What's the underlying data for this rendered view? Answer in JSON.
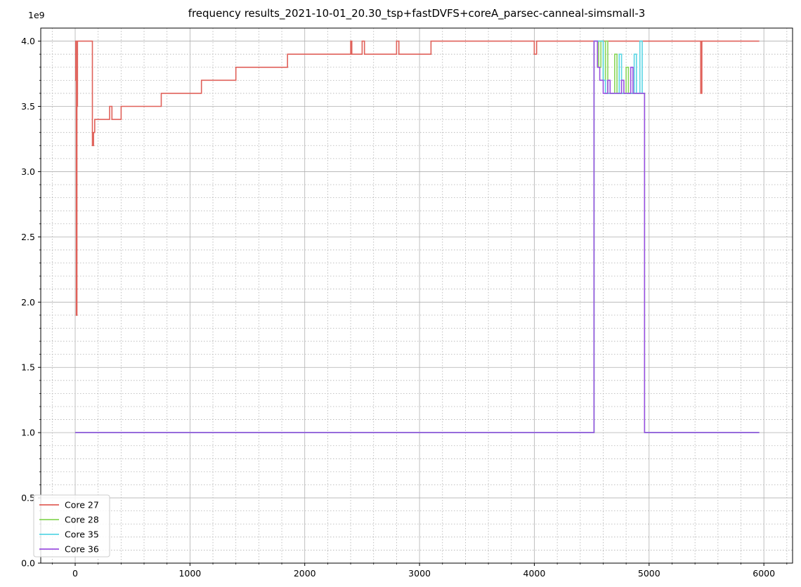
{
  "chart_data": {
    "type": "line",
    "title": "frequency results_2021-10-01_20.30_tsp+fastDVFS+coreA_parsec-canneal-simsmall-3",
    "xlabel": "",
    "ylabel": "",
    "y_offset_label": "1e9",
    "xlim": [
      -300,
      6250
    ],
    "ylim": [
      0,
      4.1
    ],
    "xticks": [
      0,
      1000,
      2000,
      3000,
      4000,
      5000,
      6000
    ],
    "xtick_labels": [
      "0",
      "1000",
      "2000",
      "3000",
      "4000",
      "5000",
      "6000"
    ],
    "yticks": [
      0.0,
      0.5,
      1.0,
      1.5,
      2.0,
      2.5,
      3.0,
      3.5,
      4.0
    ],
    "ytick_labels": [
      "0.0",
      "0.5",
      "1.0",
      "1.5",
      "2.0",
      "2.5",
      "3.0",
      "3.5",
      "4.0"
    ],
    "grid": true,
    "minor_grid": true,
    "legend_position": "bottom-left",
    "series": [
      {
        "name": "Core 27",
        "color": "#e0615a",
        "x": [
          0,
          5,
          5,
          10,
          10,
          15,
          15,
          20,
          20,
          150,
          150,
          160,
          160,
          170,
          170,
          250,
          250,
          300,
          300,
          320,
          320,
          340,
          340,
          400,
          400,
          550,
          550,
          600,
          600,
          750,
          750,
          1000,
          1000,
          1100,
          1100,
          1200,
          1200,
          1400,
          1400,
          1800,
          1800,
          1850,
          1850,
          2100,
          2100,
          2200,
          2200,
          2400,
          2400,
          2410,
          2410,
          2500,
          2500,
          2520,
          2520,
          2800,
          2800,
          2820,
          2820,
          3100,
          3100,
          3120,
          3120,
          4000,
          4000,
          4020,
          4020,
          4500,
          4500,
          5450,
          5450,
          5460,
          5460,
          5960
        ],
        "y": [
          3.7,
          3.7,
          4.0,
          4.0,
          1.9,
          1.9,
          3.5,
          3.5,
          4.0,
          4.0,
          3.2,
          3.2,
          3.3,
          3.3,
          3.4,
          3.4,
          3.4,
          3.4,
          3.5,
          3.5,
          3.4,
          3.4,
          3.4,
          3.4,
          3.5,
          3.5,
          3.5,
          3.5,
          3.5,
          3.5,
          3.6,
          3.6,
          3.6,
          3.6,
          3.7,
          3.7,
          3.7,
          3.7,
          3.8,
          3.8,
          3.8,
          3.8,
          3.9,
          3.9,
          3.9,
          3.9,
          3.9,
          3.9,
          4.0,
          4.0,
          3.9,
          3.9,
          4.0,
          4.0,
          3.9,
          3.9,
          4.0,
          4.0,
          3.9,
          3.9,
          4.0,
          4.0,
          4.0,
          4.0,
          3.9,
          3.9,
          4.0,
          4.0,
          4.0,
          4.0,
          3.6,
          3.6,
          4.0,
          4.0
        ]
      },
      {
        "name": "Core 28",
        "color": "#8ad65a",
        "x": [
          0,
          4520,
          4520,
          4560,
          4560,
          4580,
          4580,
          4600,
          4600,
          4620,
          4620,
          4640,
          4640,
          4700,
          4700,
          4720,
          4720,
          4800,
          4800,
          4820,
          4820,
          4960,
          4960,
          5960
        ],
        "y": [
          1.0,
          1.0,
          4.0,
          4.0,
          3.8,
          3.8,
          4.0,
          4.0,
          3.7,
          3.7,
          4.0,
          4.0,
          3.6,
          3.6,
          3.9,
          3.9,
          3.6,
          3.6,
          3.8,
          3.8,
          3.6,
          3.6,
          1.0,
          1.0
        ]
      },
      {
        "name": "Core 35",
        "color": "#5ad6e4",
        "x": [
          0,
          4520,
          4520,
          4600,
          4600,
          4620,
          4620,
          4740,
          4740,
          4760,
          4760,
          4870,
          4870,
          4890,
          4890,
          4920,
          4920,
          4940,
          4940,
          4960,
          4960,
          5960
        ],
        "y": [
          1.0,
          1.0,
          4.0,
          4.0,
          3.7,
          3.7,
          3.6,
          3.6,
          3.9,
          3.9,
          3.6,
          3.6,
          3.9,
          3.9,
          3.6,
          3.6,
          4.0,
          4.0,
          3.6,
          3.6,
          1.0,
          1.0
        ]
      },
      {
        "name": "Core 36",
        "color": "#9b51e0",
        "x": [
          0,
          4520,
          4520,
          4550,
          4550,
          4570,
          4570,
          4600,
          4600,
          4640,
          4640,
          4660,
          4660,
          4760,
          4760,
          4780,
          4780,
          4840,
          4840,
          4860,
          4860,
          4960,
          4960,
          5960
        ],
        "y": [
          1.0,
          1.0,
          4.0,
          4.0,
          3.8,
          3.8,
          3.7,
          3.7,
          3.6,
          3.6,
          3.7,
          3.7,
          3.6,
          3.6,
          3.7,
          3.7,
          3.6,
          3.6,
          3.8,
          3.8,
          3.6,
          3.6,
          1.0,
          1.0
        ]
      }
    ]
  }
}
